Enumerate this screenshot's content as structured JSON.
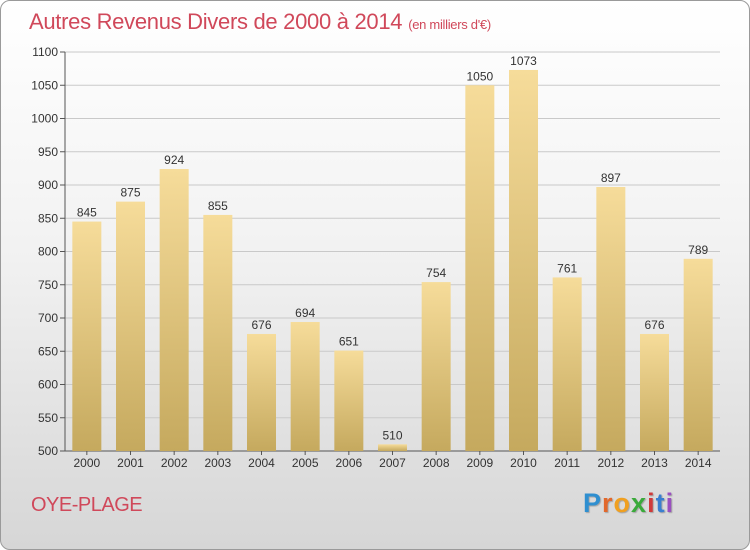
{
  "title": "Autres Revenus Divers de 2000 à 2014",
  "subtitle": "(en milliers d'€)",
  "place": "OYE-PLAGE",
  "logo": {
    "letters": [
      {
        "char": "P",
        "color": "#2f8fd0"
      },
      {
        "char": "r",
        "color": "#e2682b"
      },
      {
        "char": "o",
        "color": "#f0a020"
      },
      {
        "char": "x",
        "color": "#3aaa3a"
      },
      {
        "char": "i",
        "color": "#d03a3a"
      },
      {
        "char": "t",
        "color": "#3a7fd0"
      },
      {
        "char": "i",
        "color": "#9a50c0"
      }
    ]
  },
  "colors": {
    "title": "#d0485a",
    "bar_top": "#f6dc9a",
    "bar_bottom": "#c5a95e"
  },
  "chart_data": {
    "type": "bar",
    "categories": [
      "2000",
      "2001",
      "2002",
      "2003",
      "2004",
      "2005",
      "2006",
      "2007",
      "2008",
      "2009",
      "2010",
      "2011",
      "2012",
      "2013",
      "2014"
    ],
    "values": [
      845,
      875,
      924,
      855,
      676,
      694,
      651,
      510,
      754,
      1050,
      1073,
      761,
      897,
      676,
      789
    ],
    "ylim": [
      500,
      1100
    ],
    "yticks": [
      500,
      550,
      600,
      650,
      700,
      750,
      800,
      850,
      900,
      950,
      1000,
      1050,
      1100
    ],
    "grid": true,
    "data_labels": true
  }
}
